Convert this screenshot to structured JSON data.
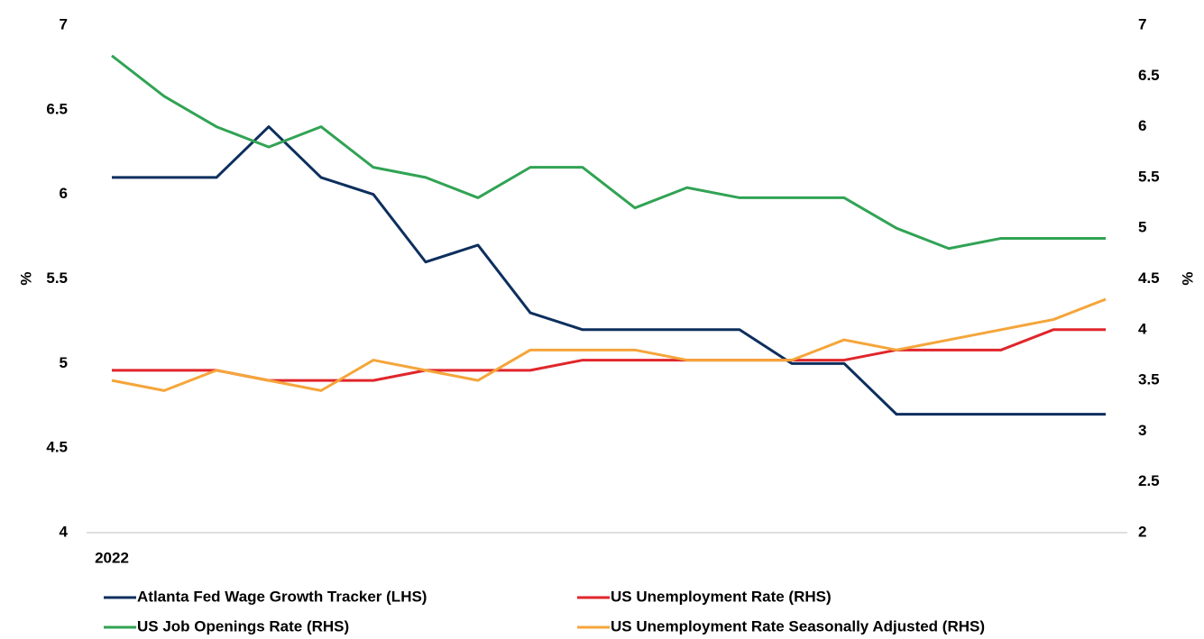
{
  "chart_data": {
    "type": "line",
    "categories": [
      "2022",
      null,
      null,
      null,
      null,
      null,
      null,
      null,
      null,
      null,
      null,
      null,
      null,
      null,
      null,
      null,
      null,
      null,
      null,
      null
    ],
    "series": [
      {
        "name": "Atlanta Fed Wage Growth Tracker (LHS)",
        "color": "#0d2f5e",
        "axis": "y",
        "values": [
          6.1,
          6.1,
          6.1,
          6.4,
          6.1,
          6.0,
          5.6,
          5.7,
          5.3,
          5.2,
          5.2,
          5.2,
          5.2,
          5.0,
          5.0,
          4.7,
          4.7,
          4.7,
          4.7,
          4.7
        ]
      },
      {
        "name": "US Unemployment Rate (RHS)",
        "color": "#e0262b",
        "axis": "y2",
        "values": [
          3.6,
          3.6,
          3.6,
          3.5,
          3.5,
          3.5,
          3.6,
          3.6,
          3.6,
          3.7,
          3.7,
          3.7,
          3.7,
          3.7,
          3.7,
          3.8,
          3.8,
          3.8,
          4.0,
          4.0
        ]
      },
      {
        "name": "US Job Openings Rate (RHS)",
        "color": "#31a354",
        "axis": "y2",
        "values": [
          6.7,
          6.3,
          6.0,
          5.8,
          6.0,
          5.6,
          5.5,
          5.3,
          5.6,
          5.6,
          5.2,
          5.4,
          5.3,
          5.3,
          5.3,
          5.0,
          4.8,
          4.9,
          4.9,
          4.9
        ]
      },
      {
        "name": "US Unemployment Rate Seasonally Adjusted (RHS)",
        "color": "#f5a53a",
        "axis": "y2",
        "values": [
          3.5,
          3.4,
          3.6,
          3.5,
          3.4,
          3.7,
          3.6,
          3.5,
          3.8,
          3.8,
          3.8,
          3.7,
          3.7,
          3.7,
          3.9,
          3.8,
          3.9,
          4.0,
          4.1,
          4.3
        ]
      }
    ],
    "y_label": "%",
    "y2_label": "%",
    "ylim": [
      4,
      7
    ],
    "yticks": [
      4,
      4.5,
      5,
      5.5,
      6,
      6.5,
      7
    ],
    "y2lim": [
      2,
      7
    ],
    "y2ticks": [
      2,
      2.5,
      3,
      3.5,
      4,
      4.5,
      5,
      5.5,
      6,
      6.5,
      7
    ],
    "grid": false
  }
}
